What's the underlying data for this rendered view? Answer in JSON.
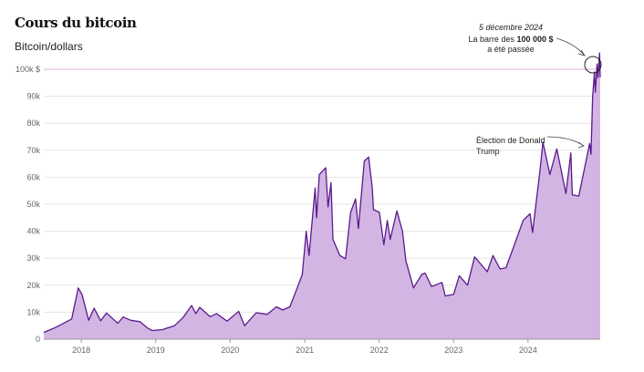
{
  "title": "Cours du bitcoin",
  "subtitle": "Bitcoin/dollars",
  "colors": {
    "line": "#5b1a8c",
    "area": "#d3b5e3",
    "highlight": "#e8bde8",
    "grid": "#e6e6e6"
  },
  "annotations": {
    "peak": {
      "line1": "5 décembre 2024",
      "line2_prefix": "La barre des ",
      "line2_bold": "100 000 $",
      "line3": "a été passée"
    },
    "election": {
      "line1": "Élection de Donald",
      "line2": "Trump"
    }
  },
  "chart_data": {
    "type": "area",
    "title": "Cours du bitcoin",
    "ylabel": "Bitcoin/dollars",
    "xlabel": "",
    "ylim": [
      0,
      100000
    ],
    "xlim": [
      "2017-07-01",
      "2024-12-20"
    ],
    "yticks": [
      {
        "value": 0,
        "label": "0"
      },
      {
        "value": 10000,
        "label": "10k"
      },
      {
        "value": 20000,
        "label": "20k"
      },
      {
        "value": 30000,
        "label": "30k"
      },
      {
        "value": 40000,
        "label": "40k"
      },
      {
        "value": 50000,
        "label": "50k"
      },
      {
        "value": 60000,
        "label": "60k"
      },
      {
        "value": 70000,
        "label": "70k"
      },
      {
        "value": 80000,
        "label": "80k"
      },
      {
        "value": 90000,
        "label": "90k"
      },
      {
        "value": 100000,
        "label": "100k $"
      }
    ],
    "xticks": [
      {
        "value": "2018-01-01",
        "label": "2018"
      },
      {
        "value": "2019-01-01",
        "label": "2019"
      },
      {
        "value": "2020-01-01",
        "label": "2020"
      },
      {
        "value": "2021-01-01",
        "label": "2021"
      },
      {
        "value": "2022-01-01",
        "label": "2022"
      },
      {
        "value": "2023-01-01",
        "label": "2023"
      },
      {
        "value": "2024-01-01",
        "label": "2024"
      }
    ],
    "reference_line": 100000,
    "grid": true,
    "points": [
      [
        "2017-07-01",
        2500
      ],
      [
        "2017-09-01",
        4500
      ],
      [
        "2017-11-15",
        7500
      ],
      [
        "2017-12-17",
        19000
      ],
      [
        "2018-01-05",
        16500
      ],
      [
        "2018-02-06",
        7000
      ],
      [
        "2018-03-05",
        11500
      ],
      [
        "2018-04-06",
        6800
      ],
      [
        "2018-05-05",
        9700
      ],
      [
        "2018-06-29",
        5900
      ],
      [
        "2018-07-25",
        8200
      ],
      [
        "2018-09-01",
        7000
      ],
      [
        "2018-10-15",
        6500
      ],
      [
        "2018-11-25",
        4000
      ],
      [
        "2018-12-15",
        3200
      ],
      [
        "2019-02-01",
        3500
      ],
      [
        "2019-04-03",
        5000
      ],
      [
        "2019-05-15",
        8000
      ],
      [
        "2019-06-26",
        12500
      ],
      [
        "2019-07-17",
        9500
      ],
      [
        "2019-08-05",
        11800
      ],
      [
        "2019-09-25",
        8300
      ],
      [
        "2019-10-26",
        9500
      ],
      [
        "2019-12-17",
        6700
      ],
      [
        "2020-02-12",
        10300
      ],
      [
        "2020-03-12",
        5000
      ],
      [
        "2020-05-08",
        9800
      ],
      [
        "2020-07-01",
        9200
      ],
      [
        "2020-08-15",
        12000
      ],
      [
        "2020-09-15",
        10800
      ],
      [
        "2020-10-20",
        12000
      ],
      [
        "2020-11-25",
        19000
      ],
      [
        "2020-12-20",
        24000
      ],
      [
        "2021-01-08",
        40000
      ],
      [
        "2021-01-22",
        31000
      ],
      [
        "2021-02-21",
        56000
      ],
      [
        "2021-02-28",
        45000
      ],
      [
        "2021-03-13",
        61000
      ],
      [
        "2021-04-14",
        63500
      ],
      [
        "2021-04-25",
        49000
      ],
      [
        "2021-05-10",
        58000
      ],
      [
        "2021-05-19",
        37000
      ],
      [
        "2021-06-22",
        31000
      ],
      [
        "2021-07-20",
        29800
      ],
      [
        "2021-08-14",
        47000
      ],
      [
        "2021-09-07",
        52000
      ],
      [
        "2021-09-21",
        41000
      ],
      [
        "2021-10-20",
        66000
      ],
      [
        "2021-11-10",
        67500
      ],
      [
        "2021-11-28",
        56000
      ],
      [
        "2021-12-04",
        48000
      ],
      [
        "2022-01-02",
        47000
      ],
      [
        "2022-01-24",
        35000
      ],
      [
        "2022-02-10",
        44000
      ],
      [
        "2022-02-24",
        37000
      ],
      [
        "2022-03-29",
        47500
      ],
      [
        "2022-04-25",
        40000
      ],
      [
        "2022-05-12",
        29000
      ],
      [
        "2022-06-18",
        19000
      ],
      [
        "2022-07-29",
        24000
      ],
      [
        "2022-08-14",
        24500
      ],
      [
        "2022-09-15",
        19500
      ],
      [
        "2022-11-05",
        21000
      ],
      [
        "2022-11-21",
        16000
      ],
      [
        "2023-01-01",
        16600
      ],
      [
        "2023-01-29",
        23500
      ],
      [
        "2023-03-10",
        20000
      ],
      [
        "2023-04-14",
        30500
      ],
      [
        "2023-06-15",
        25000
      ],
      [
        "2023-07-13",
        31000
      ],
      [
        "2023-08-17",
        26000
      ],
      [
        "2023-09-15",
        26500
      ],
      [
        "2023-10-24",
        34500
      ],
      [
        "2023-12-08",
        44000
      ],
      [
        "2024-01-11",
        46500
      ],
      [
        "2024-01-23",
        39500
      ],
      [
        "2024-02-28",
        62000
      ],
      [
        "2024-03-14",
        73000
      ],
      [
        "2024-04-17",
        61000
      ],
      [
        "2024-05-21",
        70500
      ],
      [
        "2024-07-05",
        54000
      ],
      [
        "2024-07-29",
        69000
      ],
      [
        "2024-08-05",
        53500
      ],
      [
        "2024-09-06",
        53000
      ],
      [
        "2024-10-29",
        72500
      ],
      [
        "2024-11-05",
        68500
      ],
      [
        "2024-11-13",
        90000
      ],
      [
        "2024-11-22",
        99000
      ],
      [
        "2024-11-26",
        91500
      ],
      [
        "2024-12-05",
        102000
      ],
      [
        "2024-12-09",
        97000
      ],
      [
        "2024-12-17",
        106000
      ],
      [
        "2024-12-20",
        97000
      ]
    ]
  }
}
